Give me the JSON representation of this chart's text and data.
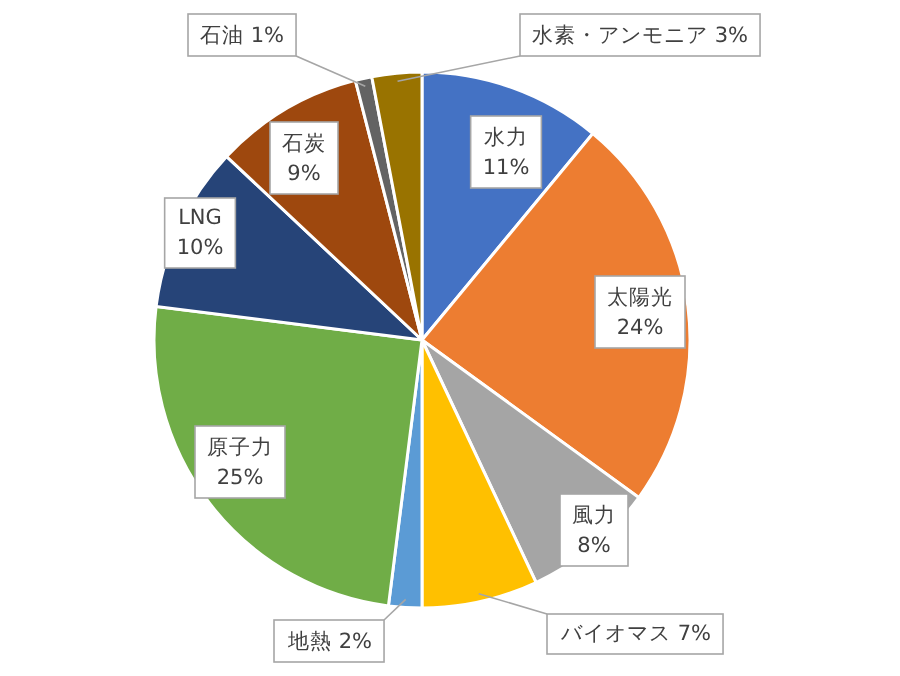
{
  "chart_data": {
    "type": "pie",
    "categories": [
      "水力",
      "太陽光",
      "風力",
      "バイオマス",
      "地熱",
      "原子力",
      "LNG",
      "石炭",
      "石油",
      "水素・アンモニア"
    ],
    "values": [
      11,
      24,
      8,
      7,
      2,
      25,
      10,
      9,
      1,
      3
    ],
    "value_labels": [
      "11%",
      "24%",
      "8%",
      "7%",
      "2%",
      "25%",
      "10%",
      "9%",
      "1%",
      "3%"
    ],
    "colors": [
      "#4472c4",
      "#ed7d31",
      "#a5a5a5",
      "#ffc000",
      "#5b9bd5",
      "#70ad47",
      "#264478",
      "#9e480e",
      "#636363",
      "#997300"
    ]
  }
}
